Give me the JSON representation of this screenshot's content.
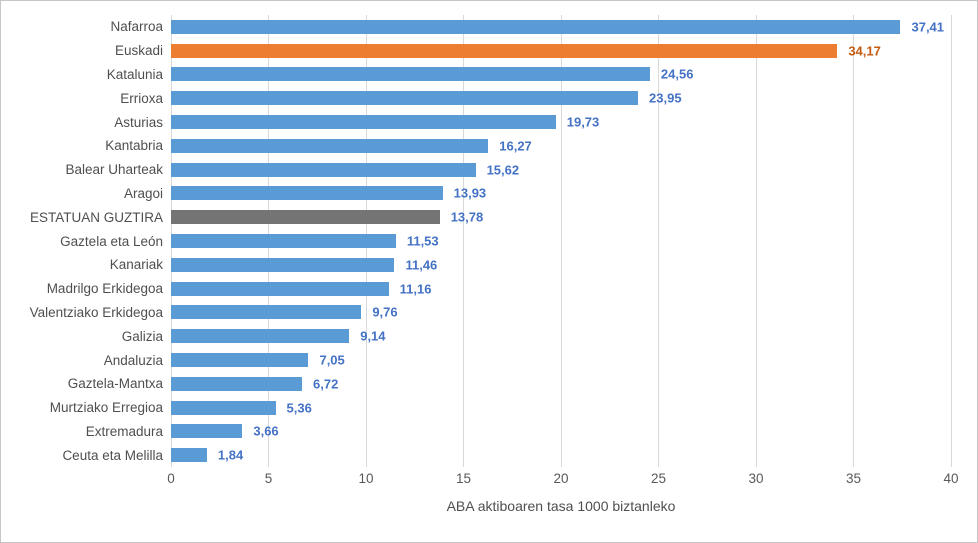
{
  "chart_data": {
    "type": "bar",
    "orientation": "horizontal",
    "title": "",
    "xlabel": "ABA aktiboaren tasa 1000 biztanleko",
    "ylabel": "",
    "xlim": [
      0,
      40
    ],
    "xticks": [
      0,
      5,
      10,
      15,
      20,
      25,
      30,
      35,
      40
    ],
    "grid": "vertical",
    "decimal_separator": ",",
    "legend": "none",
    "categories": [
      "Nafarroa",
      "Euskadi",
      "Katalunia",
      "Errioxa",
      "Asturias",
      "Kantabria",
      "Balear Uharteak",
      "Aragoi",
      "ESTATUAN GUZTIRA",
      "Gaztela eta León",
      "Kanariak",
      "Madrilgo Erkidegoa",
      "Valentziako Erkidegoa",
      "Galizia",
      "Andaluzia",
      "Gaztela-Mantxa",
      "Murtziako Erregioa",
      "Extremadura",
      "Ceuta eta Melilla"
    ],
    "values": [
      37.41,
      34.17,
      24.56,
      23.95,
      19.73,
      16.27,
      15.62,
      13.93,
      13.78,
      11.53,
      11.46,
      11.16,
      9.76,
      9.14,
      7.05,
      6.72,
      5.36,
      3.66,
      1.84
    ],
    "value_labels": [
      "37,41",
      "34,17",
      "24,56",
      "23,95",
      "19,73",
      "16,27",
      "15,62",
      "13,93",
      "13,78",
      "11,53",
      "11,46",
      "11,16",
      "9,76",
      "9,14",
      "7,05",
      "6,72",
      "5,36",
      "3,66",
      "1,84"
    ],
    "bar_styles": [
      "default",
      "orange",
      "default",
      "default",
      "default",
      "default",
      "default",
      "default",
      "gray",
      "default",
      "default",
      "default",
      "default",
      "default",
      "default",
      "default",
      "default",
      "default",
      "default"
    ],
    "colors": {
      "bar_default": "#5B9BD5",
      "bar_orange": "#ED7D31",
      "bar_gray": "#747474",
      "value_label_default": "#4472C4",
      "value_label_orange": "#C55A11",
      "axis_text": "#595959",
      "gridline": "#D9D9D9"
    }
  }
}
